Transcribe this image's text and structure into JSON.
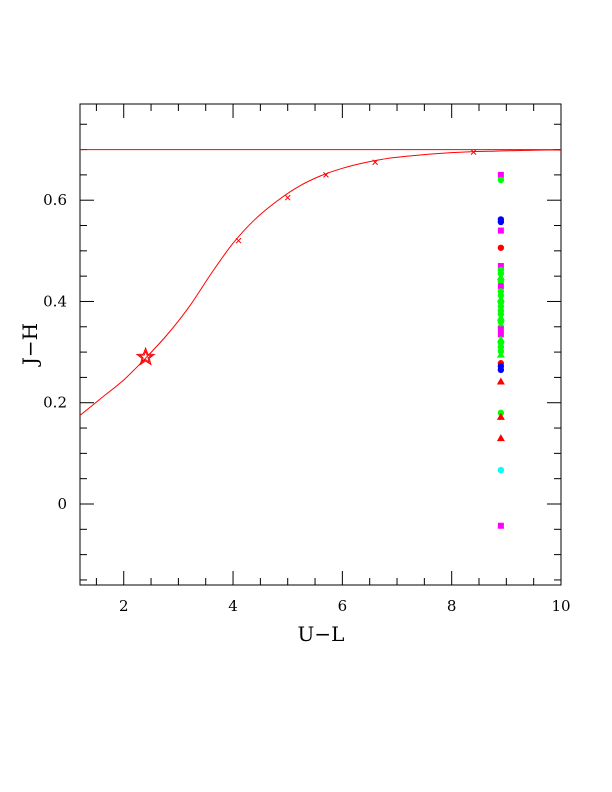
{
  "chart_data": {
    "type": "scatter",
    "title": "",
    "xlabel": "U−L",
    "ylabel": "J−H",
    "xlim": [
      1.2,
      10.0
    ],
    "ylim": [
      -0.16,
      0.79
    ],
    "xticks": [
      2,
      4,
      6,
      8,
      10
    ],
    "xtick_labels": [
      "2",
      "4",
      "6",
      "8",
      "10"
    ],
    "yticks": [
      0,
      0.2,
      0.4,
      0.6
    ],
    "ytick_labels": [
      "0",
      "0.2",
      "0.4",
      "0.6"
    ],
    "grid": false,
    "legend": "none",
    "colors": {
      "curve": "#ff0000",
      "red": "#ff0000",
      "green": "#00ff00",
      "blue": "#0000ff",
      "magenta": "#ff00ff",
      "cyan": "#00ffff"
    },
    "asymptote": {
      "y": 0.7,
      "color": "#ff0000"
    },
    "curve": {
      "color": "#ff0000",
      "x": [
        1.2,
        1.6,
        2.0,
        2.4,
        2.8,
        3.2,
        3.6,
        4.0,
        4.4,
        4.8,
        5.2,
        5.6,
        6.0,
        6.4,
        6.8,
        7.2,
        7.6,
        8.0,
        8.4,
        8.8,
        9.2,
        9.6,
        10.0
      ],
      "y": [
        0.175,
        0.21,
        0.245,
        0.288,
        0.335,
        0.39,
        0.455,
        0.515,
        0.562,
        0.598,
        0.627,
        0.648,
        0.663,
        0.674,
        0.682,
        0.687,
        0.691,
        0.694,
        0.696,
        0.697,
        0.698,
        0.699,
        0.699
      ]
    },
    "curve_markers": {
      "x": [
        4.1,
        5.0,
        5.7,
        6.6,
        8.4
      ],
      "y": [
        0.52,
        0.605,
        0.65,
        0.675,
        0.695
      ]
    },
    "star_marker": {
      "x": 2.4,
      "y": 0.29,
      "color": "#ff0000"
    },
    "points": [
      {
        "x": 8.9,
        "y": 0.65,
        "shape": "square",
        "color": "#ff00ff"
      },
      {
        "x": 8.9,
        "y": 0.64,
        "shape": "circle",
        "color": "#00ff00"
      },
      {
        "x": 8.9,
        "y": 0.562,
        "shape": "circle",
        "color": "#0000ff"
      },
      {
        "x": 8.9,
        "y": 0.557,
        "shape": "circle",
        "color": "#0000ff"
      },
      {
        "x": 8.9,
        "y": 0.54,
        "shape": "square",
        "color": "#ff00ff"
      },
      {
        "x": 8.9,
        "y": 0.506,
        "shape": "circle",
        "color": "#ff0000"
      },
      {
        "x": 8.9,
        "y": 0.47,
        "shape": "square",
        "color": "#ff00ff"
      },
      {
        "x": 8.9,
        "y": 0.462,
        "shape": "circle",
        "color": "#00ff00"
      },
      {
        "x": 8.9,
        "y": 0.455,
        "shape": "circle",
        "color": "#00ff00"
      },
      {
        "x": 8.9,
        "y": 0.448,
        "shape": "triangle",
        "color": "#00ff00"
      },
      {
        "x": 8.9,
        "y": 0.44,
        "shape": "circle",
        "color": "#00ff00"
      },
      {
        "x": 8.9,
        "y": 0.43,
        "shape": "square",
        "color": "#ff00ff"
      },
      {
        "x": 8.9,
        "y": 0.42,
        "shape": "circle",
        "color": "#00ff00"
      },
      {
        "x": 8.9,
        "y": 0.412,
        "shape": "circle",
        "color": "#00ff00"
      },
      {
        "x": 8.9,
        "y": 0.405,
        "shape": "triangle",
        "color": "#00ff00"
      },
      {
        "x": 8.9,
        "y": 0.398,
        "shape": "circle",
        "color": "#00ff00"
      },
      {
        "x": 8.9,
        "y": 0.39,
        "shape": "circle",
        "color": "#00ff00"
      },
      {
        "x": 8.9,
        "y": 0.382,
        "shape": "circle",
        "color": "#00ff00"
      },
      {
        "x": 8.9,
        "y": 0.375,
        "shape": "circle",
        "color": "#00ff00"
      },
      {
        "x": 8.9,
        "y": 0.368,
        "shape": "triangle",
        "color": "#00ff00"
      },
      {
        "x": 8.9,
        "y": 0.36,
        "shape": "circle",
        "color": "#00ff00"
      },
      {
        "x": 8.9,
        "y": 0.35,
        "shape": "circle",
        "color": "#00ff00"
      },
      {
        "x": 8.9,
        "y": 0.345,
        "shape": "square",
        "color": "#ff00ff"
      },
      {
        "x": 8.9,
        "y": 0.335,
        "shape": "square",
        "color": "#ff00ff"
      },
      {
        "x": 8.9,
        "y": 0.325,
        "shape": "triangle",
        "color": "#00ff00"
      },
      {
        "x": 8.9,
        "y": 0.318,
        "shape": "circle",
        "color": "#00ff00"
      },
      {
        "x": 8.9,
        "y": 0.31,
        "shape": "circle",
        "color": "#00ff00"
      },
      {
        "x": 8.9,
        "y": 0.302,
        "shape": "circle",
        "color": "#00ff00"
      },
      {
        "x": 8.9,
        "y": 0.295,
        "shape": "triangle",
        "color": "#00ff00"
      },
      {
        "x": 8.9,
        "y": 0.278,
        "shape": "circle",
        "color": "#ff0000"
      },
      {
        "x": 8.9,
        "y": 0.272,
        "shape": "circle",
        "color": "#0000ff"
      },
      {
        "x": 8.9,
        "y": 0.265,
        "shape": "circle",
        "color": "#0000ff"
      },
      {
        "x": 8.9,
        "y": 0.242,
        "shape": "triangle",
        "color": "#ff0000"
      },
      {
        "x": 8.9,
        "y": 0.18,
        "shape": "circle",
        "color": "#00ff00"
      },
      {
        "x": 8.9,
        "y": 0.172,
        "shape": "triangle",
        "color": "#ff0000"
      },
      {
        "x": 8.9,
        "y": 0.13,
        "shape": "triangle",
        "color": "#ff0000"
      },
      {
        "x": 8.9,
        "y": 0.067,
        "shape": "circle",
        "color": "#00ffff"
      },
      {
        "x": 8.9,
        "y": -0.043,
        "shape": "square",
        "color": "#ff00ff"
      }
    ]
  }
}
